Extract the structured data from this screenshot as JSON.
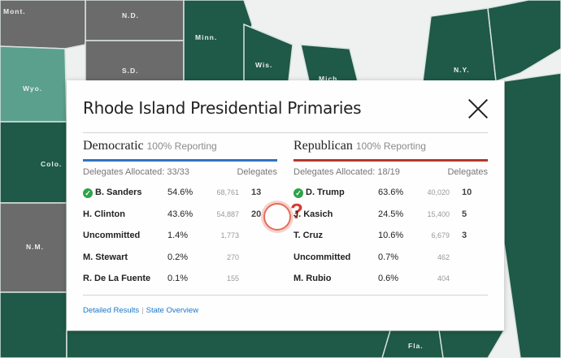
{
  "map": {
    "colors": {
      "dem_state": "#1f5948",
      "dem_light": "#5aa08d",
      "gray": "#6b6b6b",
      "water": "#eef1f0",
      "border": "#d9e4df"
    },
    "state_labels": [
      "Mont.",
      "N.D.",
      "Minn.",
      "S.D.",
      "Wis.",
      "Wyo.",
      "Mich.",
      "N.Y.",
      "Colo.",
      "N.M.",
      "Fla."
    ]
  },
  "panel": {
    "title": "Rhode Island Presidential Primaries",
    "close_icon": "close-icon",
    "democratic": {
      "party": "Democratic",
      "reporting": "100% Reporting",
      "allocated": "Delegates Allocated: 33/33",
      "delegates_header": "Delegates",
      "candidates": [
        {
          "name": "B. Sanders",
          "winner": true,
          "pct": "54.6%",
          "votes": "68,761",
          "delegates": "13"
        },
        {
          "name": "H. Clinton",
          "winner": false,
          "pct": "43.6%",
          "votes": "54,887",
          "delegates": "20"
        },
        {
          "name": "Uncommitted",
          "winner": false,
          "pct": "1.4%",
          "votes": "1,773",
          "delegates": ""
        },
        {
          "name": "M. Stewart",
          "winner": false,
          "pct": "0.2%",
          "votes": "270",
          "delegates": ""
        },
        {
          "name": "R. De La Fuente",
          "winner": false,
          "pct": "0.1%",
          "votes": "155",
          "delegates": ""
        }
      ],
      "annotation": "?"
    },
    "republican": {
      "party": "Republican",
      "reporting": "100% Reporting",
      "allocated": "Delegates Allocated: 18/19",
      "delegates_header": "Delegates",
      "candidates": [
        {
          "name": "D. Trump",
          "winner": true,
          "pct": "63.6%",
          "votes": "40,020",
          "delegates": "10"
        },
        {
          "name": "J. Kasich",
          "winner": false,
          "pct": "24.5%",
          "votes": "15,400",
          "delegates": "5"
        },
        {
          "name": "T. Cruz",
          "winner": false,
          "pct": "10.6%",
          "votes": "6,679",
          "delegates": "3"
        },
        {
          "name": "Uncommitted",
          "winner": false,
          "pct": "0.7%",
          "votes": "462",
          "delegates": ""
        },
        {
          "name": "M. Rubio",
          "winner": false,
          "pct": "0.6%",
          "votes": "404",
          "delegates": ""
        }
      ]
    },
    "footer": {
      "detailed_results": "Detailed Results",
      "separator": "|",
      "state_overview": "State Overview"
    }
  }
}
